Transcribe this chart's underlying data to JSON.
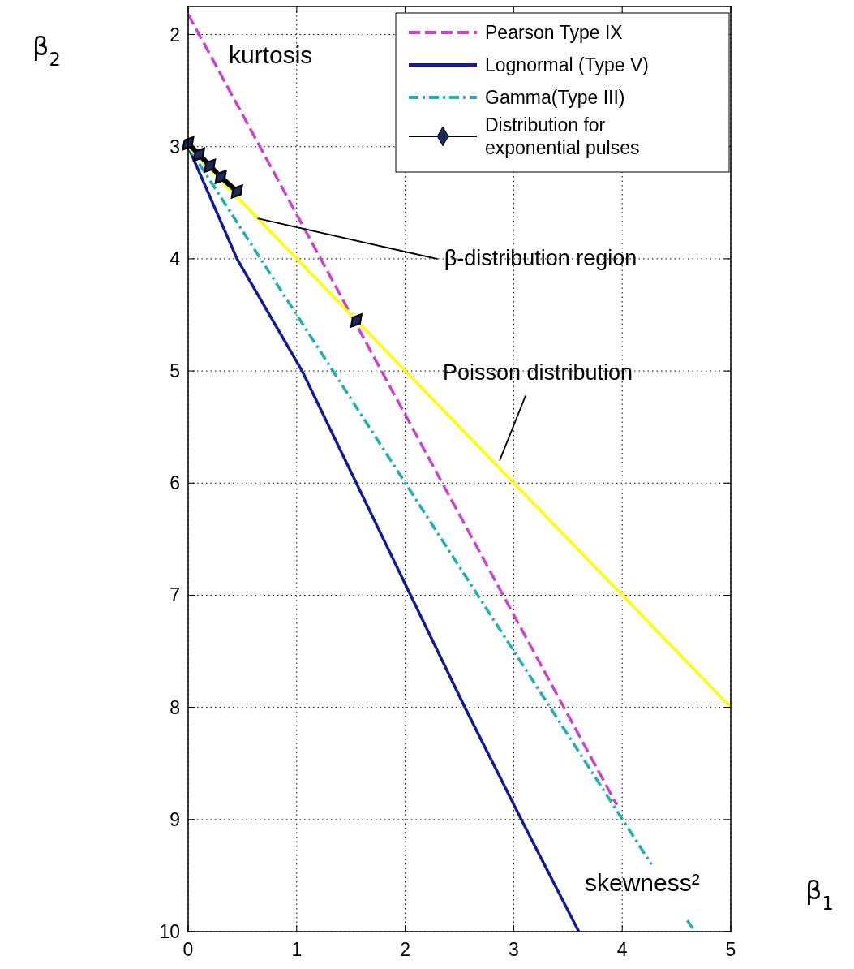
{
  "chart_data": {
    "type": "line",
    "xlabel": "β$_{1}$",
    "ylabel": "β$_{2}$",
    "xlim": [
      0,
      5
    ],
    "ylim": [
      10,
      1.75
    ],
    "xticks": [
      0,
      1,
      2,
      3,
      4,
      5
    ],
    "yticks": [
      2,
      3,
      4,
      5,
      6,
      7,
      8,
      9,
      10
    ],
    "grid": true,
    "legend": "top right",
    "series": [
      {
        "name": "Pearson Type IX",
        "color": "#cc44cc",
        "line_style": "dashed",
        "marker": "none",
        "x": [
          0,
          3.95
        ],
        "values": [
          1.82,
          8.87
        ]
      },
      {
        "name": "Lognormal (Type V)",
        "color": "#101c96",
        "line_style": "solid",
        "marker": "none",
        "x": [
          0,
          0.45,
          1.05,
          1.55,
          2.05,
          2.55,
          3.07,
          3.6
        ],
        "values": [
          3,
          4,
          5,
          6,
          7,
          8,
          9,
          10
        ]
      },
      {
        "name": "Gamma(Type III)",
        "color": "#20b0b0",
        "line_style": "dashdot",
        "marker": "none",
        "x": [
          0,
          4.27,
          4.45,
          4.6,
          4.67
        ],
        "values": [
          3,
          9.4,
          null,
          9.9,
          10
        ]
      },
      {
        "color": "#ffff00",
        "line_style": "solid",
        "marker": "none",
        "x": [
          0,
          5
        ],
        "values": [
          3,
          8
        ]
      },
      {
        "name": "Distribution for exponential pulses",
        "color": "#000000",
        "line_style": "solid",
        "marker": "diamond",
        "x": [
          0,
          0.1,
          0.2,
          0.3,
          0.45,
          1,
          1.55
        ],
        "values": [
          2.97,
          3.07,
          3.17,
          3.27,
          3.4,
          null,
          4.55
        ]
      }
    ],
    "annotations": [
      "kurtosis",
      "skewness²",
      {
        "text": "β-distribution region",
        "x": 0.64,
        "y": 3.64
      },
      {
        "text": "Poisson distribution",
        "x": 2.87,
        "y": 5.8
      }
    ]
  }
}
